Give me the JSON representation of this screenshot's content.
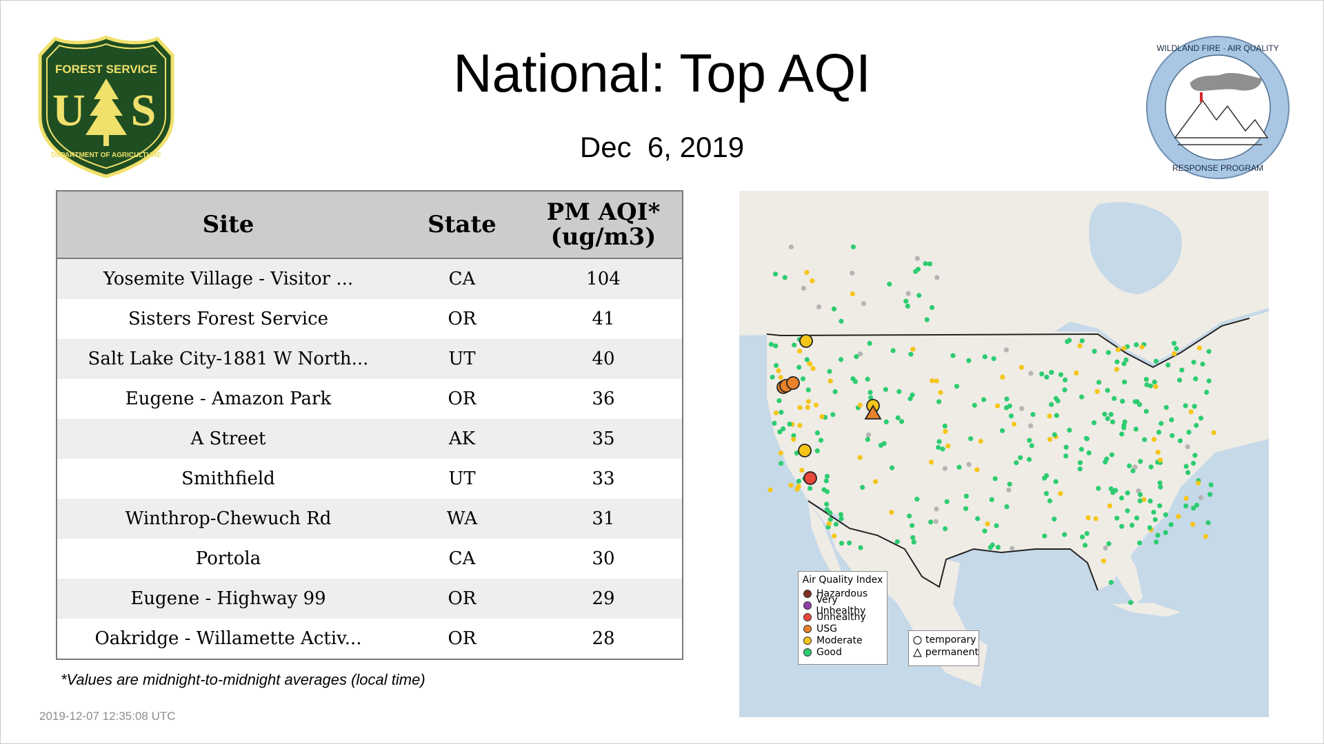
{
  "header": {
    "title": "National: Top AQI",
    "date": "Dec  6, 2019"
  },
  "logos": {
    "usfs": {
      "top": "FOREST SERVICE",
      "left_letter": "U",
      "right_letter": "S",
      "bottom": "DEPARTMENT OF AGRICULTURE"
    },
    "wfaq": {
      "top": "WILDLAND FIRE · AIR QUALITY",
      "bottom": "RESPONSE PROGRAM"
    }
  },
  "table": {
    "headers": {
      "site": "Site",
      "state": "State",
      "aqi_line1": "PM AQI*",
      "aqi_line2": "(ug/m3)"
    },
    "rows": [
      {
        "site": "Yosemite Village - Visitor ...",
        "state": "CA",
        "aqi": "104"
      },
      {
        "site": "Sisters Forest Service",
        "state": "OR",
        "aqi": "41"
      },
      {
        "site": "Salt Lake City-1881 W North...",
        "state": "UT",
        "aqi": "40"
      },
      {
        "site": "Eugene - Amazon Park",
        "state": "OR",
        "aqi": "36"
      },
      {
        "site": "A Street",
        "state": "AK",
        "aqi": "35"
      },
      {
        "site": "Smithfield",
        "state": "UT",
        "aqi": "33"
      },
      {
        "site": "Winthrop-Chewuch Rd",
        "state": "WA",
        "aqi": "31"
      },
      {
        "site": "Portola",
        "state": "CA",
        "aqi": "30"
      },
      {
        "site": "Eugene - Highway 99",
        "state": "OR",
        "aqi": "29"
      },
      {
        "site": "Oakridge - Willamette Activ...",
        "state": "OR",
        "aqi": "28"
      }
    ]
  },
  "footnote": "*Values are midnight-to-midnight averages (local time)",
  "timestamp": "2019-12-07 12:35:08 UTC",
  "legend": {
    "title": "Air Quality Index",
    "items": [
      {
        "label": "Hazardous",
        "color": "#7e2f1f"
      },
      {
        "label": "Very Unhealthy",
        "color": "#8f3fa9"
      },
      {
        "label": "Unhealthy",
        "color": "#e8473a"
      },
      {
        "label": "USG",
        "color": "#e8822a"
      },
      {
        "label": "Moderate",
        "color": "#f5c518"
      },
      {
        "label": "Good",
        "color": "#2ecc71"
      }
    ],
    "types": [
      {
        "label": "temporary",
        "shape": "circle"
      },
      {
        "label": "permanent",
        "shape": "triangle"
      }
    ]
  },
  "colors": {
    "good": "#2ecc71",
    "moderate": "#f5c518",
    "usg": "#e8822a",
    "unhealthy": "#e8473a",
    "no_data": "#b4b4b4",
    "water": "#c6d9e8",
    "land": "#efece6",
    "header_bg": "#cccccc",
    "usfs_green": "#1f4e22",
    "usfs_gold": "#f0e06c"
  }
}
